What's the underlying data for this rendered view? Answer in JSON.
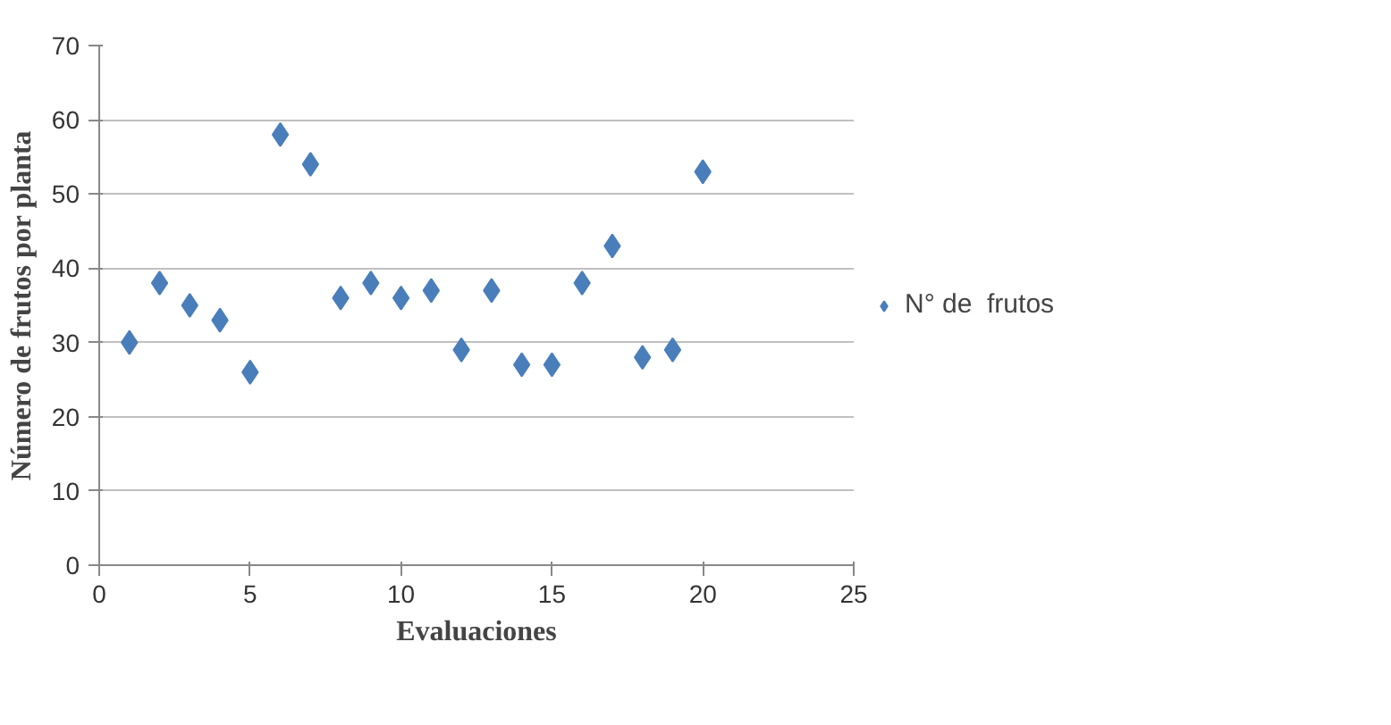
{
  "chart_data": {
    "type": "scatter",
    "xlabel": "Evaluaciones",
    "ylabel": "Número de frutos por planta",
    "x": [
      1,
      2,
      3,
      4,
      5,
      6,
      7,
      8,
      9,
      10,
      11,
      12,
      13,
      14,
      15,
      16,
      17,
      18,
      19,
      20
    ],
    "series": [
      {
        "name": "N° de  frutos",
        "color": "#4a7ebb",
        "values": [
          30,
          38,
          35,
          33,
          26,
          58,
          54,
          36,
          38,
          36,
          37,
          29,
          37,
          27,
          27,
          38,
          43,
          28,
          29,
          53
        ]
      }
    ],
    "xlim": [
      0,
      25
    ],
    "xticks": [
      0,
      5,
      10,
      15,
      20,
      25
    ],
    "ylim": [
      0,
      70
    ],
    "yticks": [
      0,
      10,
      20,
      30,
      40,
      50,
      60,
      70
    ],
    "grid": "y",
    "legend": "right",
    "marker": "diamond"
  }
}
